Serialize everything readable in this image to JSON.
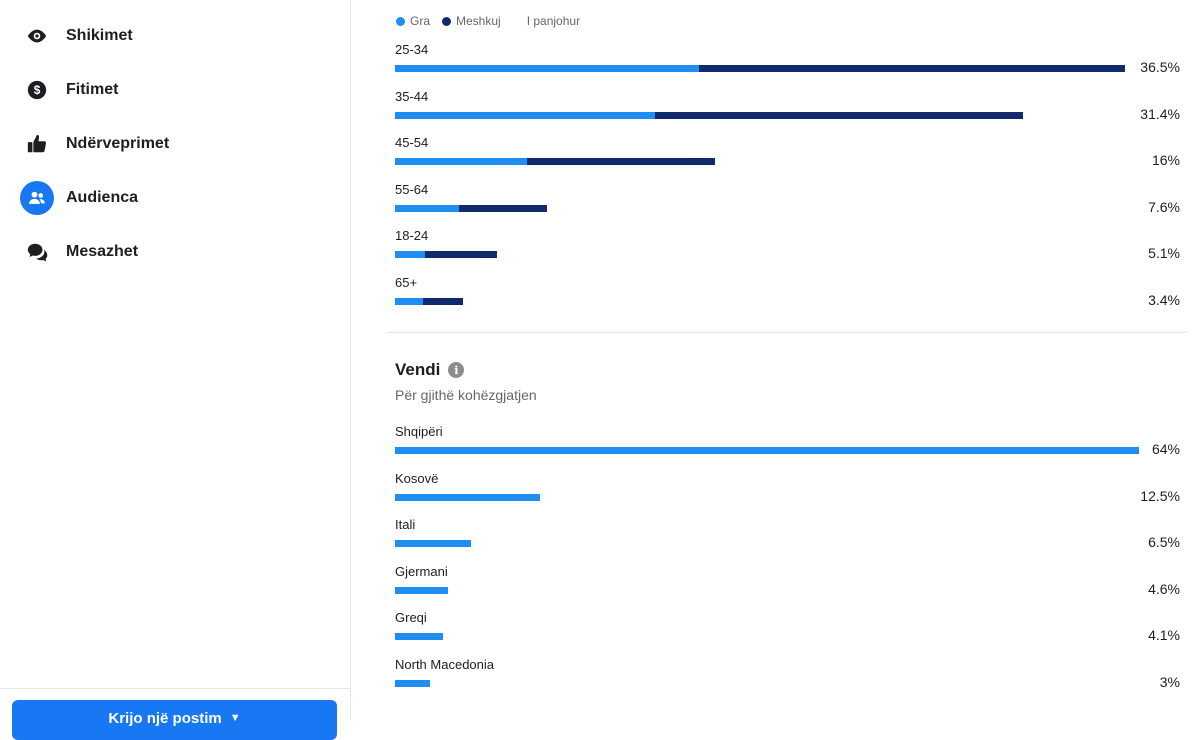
{
  "sidebar": {
    "items": [
      {
        "label": "Shikimet",
        "icon": "eye-icon",
        "active": false
      },
      {
        "label": "Fitimet",
        "icon": "dollar-circle-icon",
        "active": false
      },
      {
        "label": "Ndërveprimet",
        "icon": "thumbs-up-icon",
        "active": false
      },
      {
        "label": "Audienca",
        "icon": "people-icon",
        "active": true
      },
      {
        "label": "Mesazhet",
        "icon": "chat-bubbles-icon",
        "active": false
      }
    ],
    "create_button": "Krijo një postim"
  },
  "colors": {
    "female": "#1f8ef1",
    "male": "#102a6b",
    "accent": "#1877f2"
  },
  "legend": {
    "female": "Gra",
    "male": "Meshkuj",
    "unknown": "I panjohur"
  },
  "country_section": {
    "title": "Vendi",
    "subtitle": "Për gjithë kohëzgjatjen"
  },
  "chart_data": [
    {
      "type": "bar",
      "orientation": "horizontal",
      "stacked": true,
      "categories": [
        "25-34",
        "35-44",
        "45-54",
        "55-64",
        "18-24",
        "65+"
      ],
      "series": [
        {
          "name": "Gra",
          "values": [
            15.2,
            13.0,
            6.6,
            3.2,
            1.5,
            1.4
          ]
        },
        {
          "name": "Meshkuj",
          "values": [
            21.3,
            18.4,
            9.4,
            4.4,
            3.6,
            2.0
          ]
        }
      ],
      "totals_labels": [
        "36.5%",
        "31.4%",
        "16%",
        "7.6%",
        "5.1%",
        "3.4%"
      ],
      "totals": [
        36.5,
        31.4,
        16,
        7.6,
        5.1,
        3.4
      ],
      "xlim": [
        0,
        40
      ]
    },
    {
      "type": "bar",
      "orientation": "horizontal",
      "categories": [
        "Shqipëri",
        "Kosovë",
        "Itali",
        "Gjermani",
        "Greqi",
        "North Macedonia"
      ],
      "values": [
        64,
        12.5,
        6.5,
        4.6,
        4.1,
        3
      ],
      "values_labels": [
        "64%",
        "12.5%",
        "6.5%",
        "4.6%",
        "4.1%",
        "3%"
      ],
      "xlim": [
        0,
        64
      ]
    }
  ]
}
